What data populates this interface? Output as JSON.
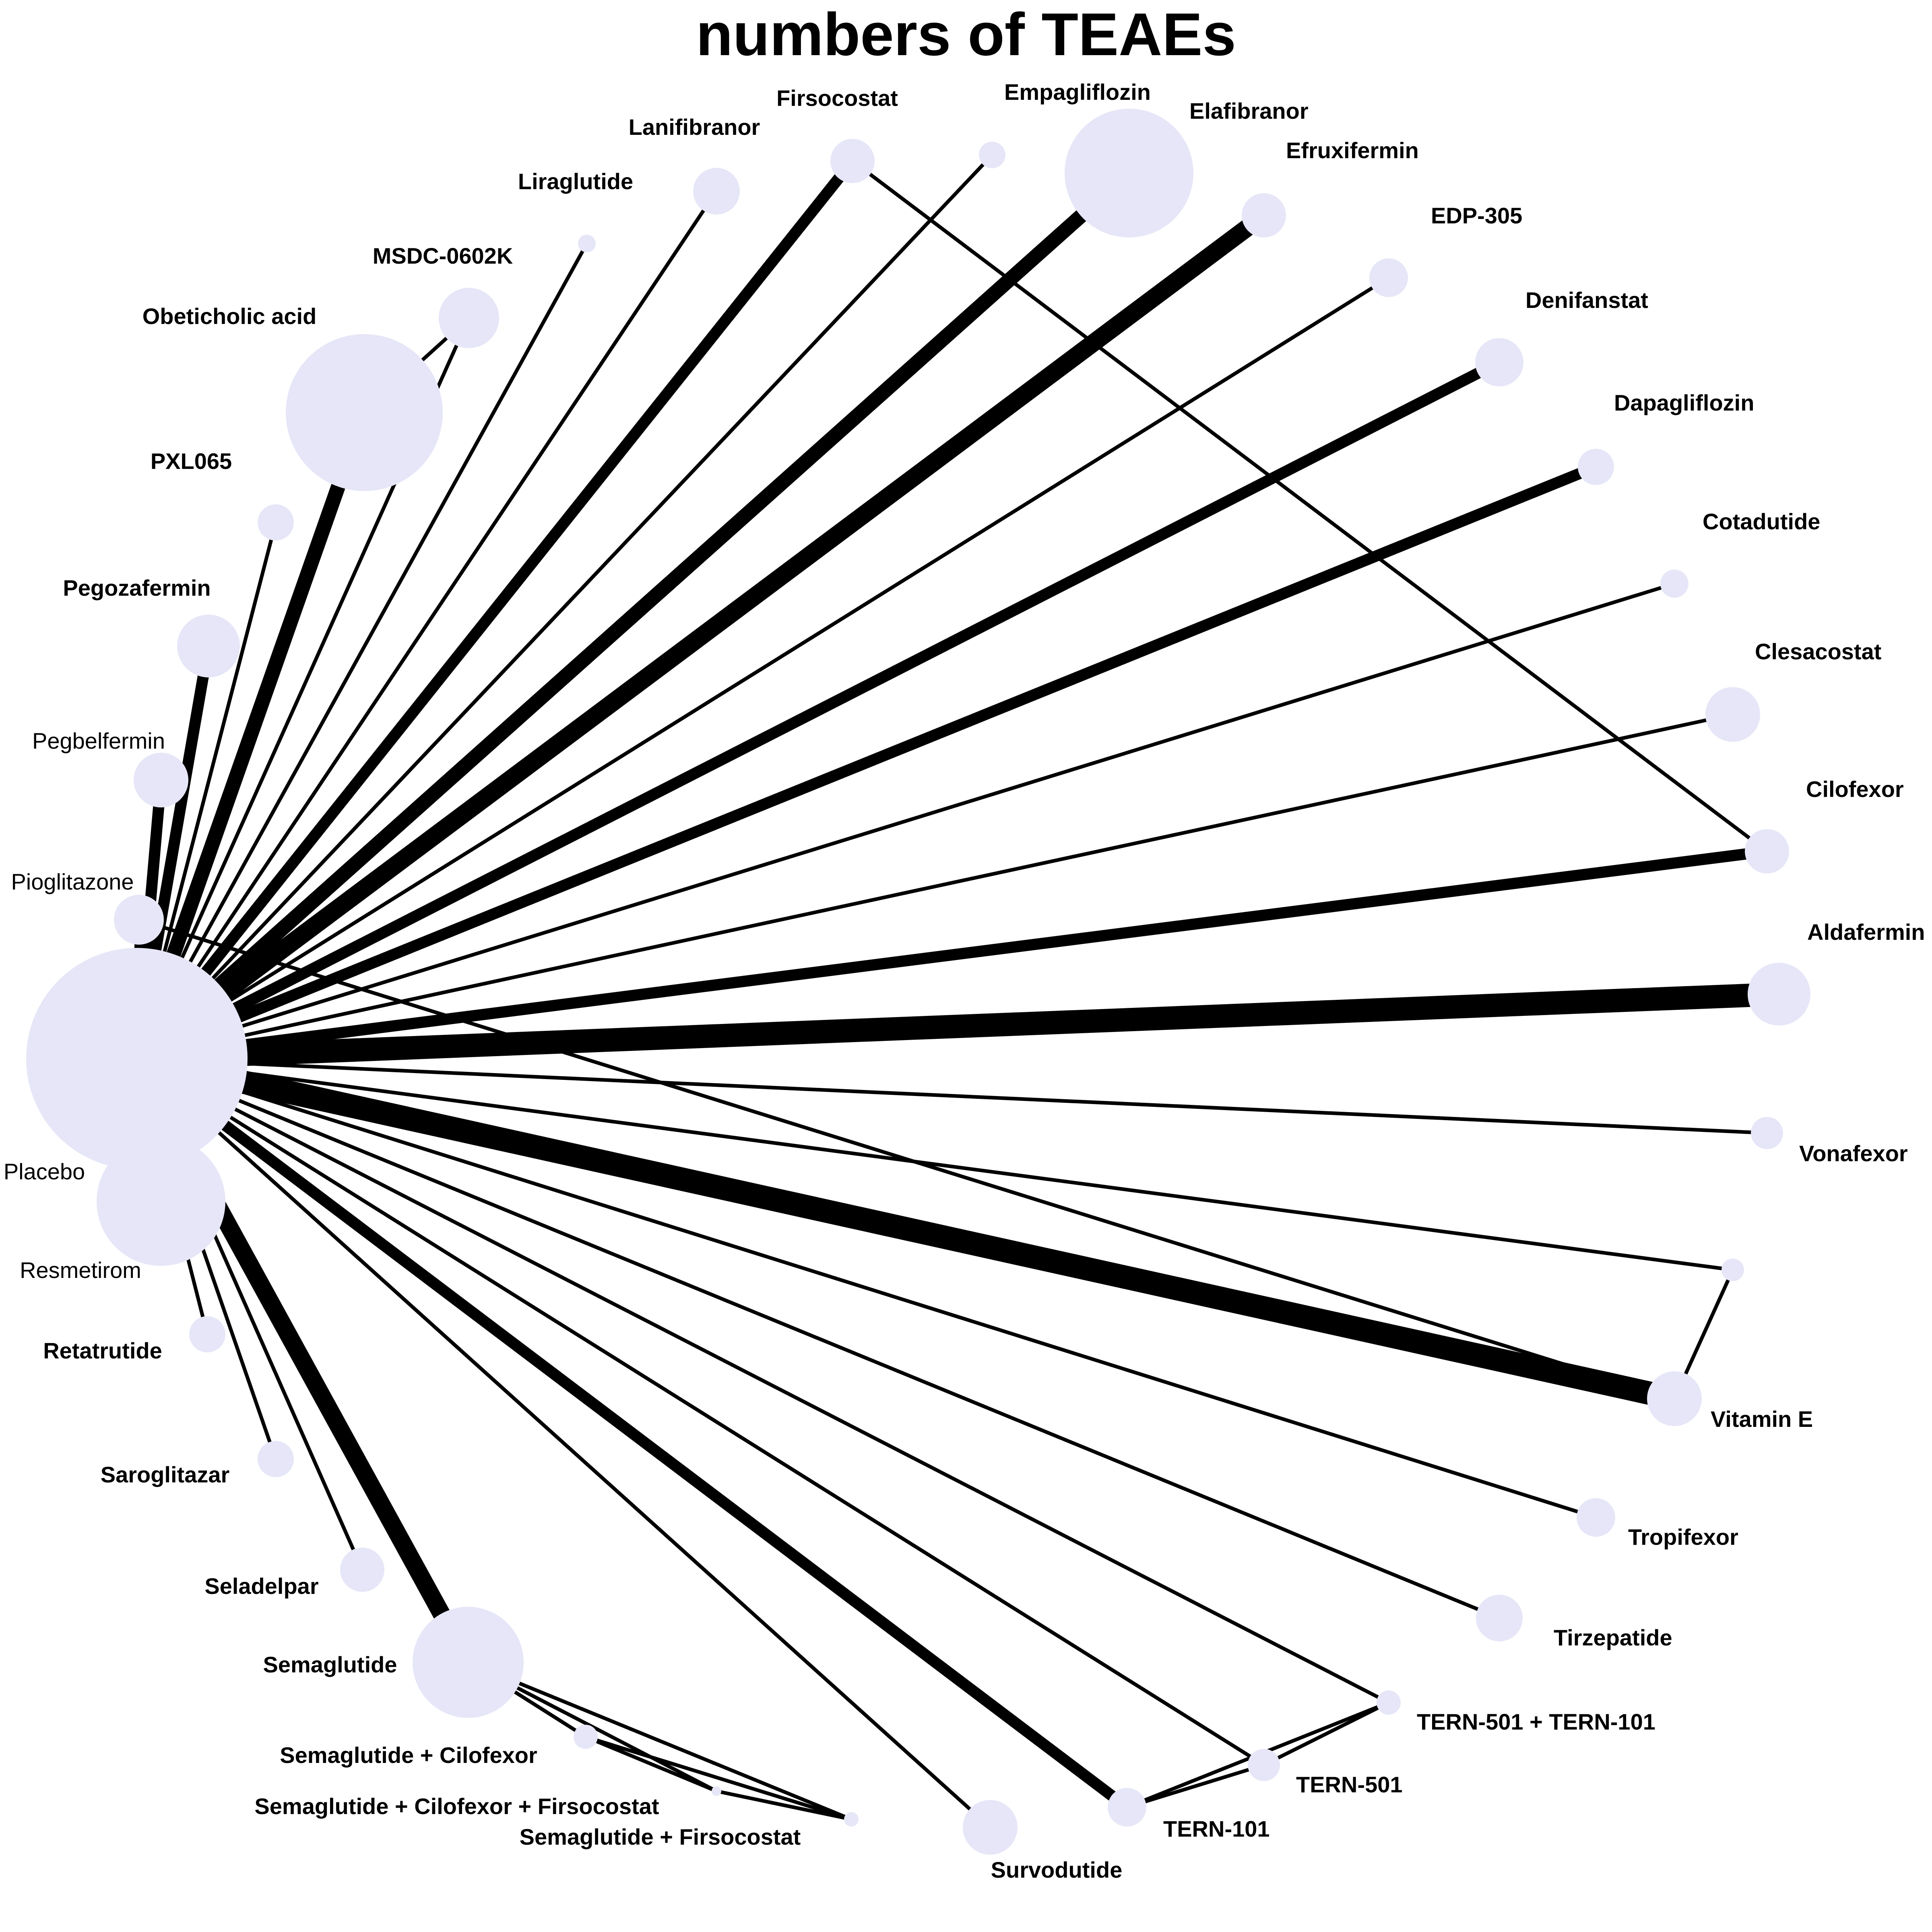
{
  "title": "numbers of TEAEs",
  "colors": {
    "node_fill": "#E6E6F8",
    "edge": "#000000",
    "background": "#FFFFFF"
  },
  "nodes": [
    {
      "id": "placebo",
      "label": "Placebo",
      "bold": false
    },
    {
      "id": "resmetirom",
      "label": "Resmetirom",
      "bold": false
    },
    {
      "id": "retatrutide",
      "label": "Retatrutide",
      "bold": true
    },
    {
      "id": "saroglitazar",
      "label": "Saroglitazar",
      "bold": true
    },
    {
      "id": "seladelpar",
      "label": "Seladelpar",
      "bold": true
    },
    {
      "id": "semaglutide",
      "label": "Semaglutide",
      "bold": true
    },
    {
      "id": "sema_cilo",
      "label": "Semaglutide + Cilofexor",
      "bold": true
    },
    {
      "id": "sema_cilo_firso",
      "label": "Semaglutide + Cilofexor + Firsocostat",
      "bold": true
    },
    {
      "id": "sema_firso",
      "label": "Semaglutide + Firsocostat",
      "bold": true
    },
    {
      "id": "survodutide",
      "label": "Survodutide",
      "bold": true
    },
    {
      "id": "tern101",
      "label": "TERN-101",
      "bold": true
    },
    {
      "id": "tern501",
      "label": "TERN-501",
      "bold": true
    },
    {
      "id": "tern501_101",
      "label": "TERN-501 + TERN-101",
      "bold": true
    },
    {
      "id": "tirzepatide",
      "label": "Tirzepatide",
      "bold": true
    },
    {
      "id": "tropifexor",
      "label": "Tropifexor",
      "bold": true
    },
    {
      "id": "vitamin_e",
      "label": "Vitamin E",
      "bold": true
    },
    {
      "id": "vk2809",
      "label": "",
      "bold": true
    },
    {
      "id": "vonafexor",
      "label": "Vonafexor",
      "bold": true
    },
    {
      "id": "aldafermin",
      "label": "Aldafermin",
      "bold": true
    },
    {
      "id": "cilofexor",
      "label": "Cilofexor",
      "bold": true
    },
    {
      "id": "clesacostat",
      "label": "Clesacostat",
      "bold": true
    },
    {
      "id": "cotadutide",
      "label": "Cotadutide",
      "bold": true
    },
    {
      "id": "dapagliflozin",
      "label": "Dapagliflozin",
      "bold": true
    },
    {
      "id": "denifanstat",
      "label": "Denifanstat",
      "bold": true
    },
    {
      "id": "edp305",
      "label": "EDP-305",
      "bold": true
    },
    {
      "id": "efruxifermin",
      "label": "Efruxifermin",
      "bold": true
    },
    {
      "id": "elafibranor",
      "label": "Elafibranor",
      "bold": true
    },
    {
      "id": "empagliflozin",
      "label": "Empagliflozin",
      "bold": true
    },
    {
      "id": "firsocostat",
      "label": "Firsocostat",
      "bold": true
    },
    {
      "id": "lanifibranor",
      "label": "Lanifibranor",
      "bold": true
    },
    {
      "id": "liraglutide",
      "label": "Liraglutide",
      "bold": true
    },
    {
      "id": "msdc",
      "label": "MSDC-0602K",
      "bold": true
    },
    {
      "id": "oca",
      "label": "Obeticholic acid",
      "bold": true
    },
    {
      "id": "pxl065",
      "label": "PXL065",
      "bold": true
    },
    {
      "id": "pegozafermin",
      "label": "Pegozafermin",
      "bold": true
    },
    {
      "id": "pegbelfermin",
      "label": "Pegbelfermin",
      "bold": false
    },
    {
      "id": "pioglitazone",
      "label": "Pioglitazone",
      "bold": false
    }
  ],
  "edges": [
    {
      "from": "placebo",
      "to": "aldafermin",
      "weight": 6
    },
    {
      "from": "placebo",
      "to": "vitamin_e",
      "weight": 6
    },
    {
      "from": "placebo",
      "to": "elafibranor",
      "weight": 4
    },
    {
      "from": "placebo",
      "to": "efruxifermin",
      "weight": 5
    },
    {
      "from": "placebo",
      "to": "semaglutide",
      "weight": 5
    },
    {
      "from": "placebo",
      "to": "oca",
      "weight": 4
    },
    {
      "from": "placebo",
      "to": "firsocostat",
      "weight": 3
    },
    {
      "from": "placebo",
      "to": "denifanstat",
      "weight": 3
    },
    {
      "from": "placebo",
      "to": "dapagliflozin",
      "weight": 3
    },
    {
      "from": "placebo",
      "to": "cilofexor",
      "weight": 3
    },
    {
      "from": "placebo",
      "to": "tern101",
      "weight": 3
    },
    {
      "from": "placebo",
      "to": "pegozafermin",
      "weight": 3
    },
    {
      "from": "placebo",
      "to": "pegbelfermin",
      "weight": 3
    },
    {
      "from": "placebo",
      "to": "pioglitazone",
      "weight": 2
    },
    {
      "from": "placebo",
      "to": "resmetirom",
      "weight": 2
    },
    {
      "from": "placebo",
      "to": "retatrutide",
      "weight": 1
    },
    {
      "from": "placebo",
      "to": "saroglitazar",
      "weight": 1
    },
    {
      "from": "placebo",
      "to": "seladelpar",
      "weight": 1
    },
    {
      "from": "placebo",
      "to": "survodutide",
      "weight": 1
    },
    {
      "from": "placebo",
      "to": "tern501",
      "weight": 1
    },
    {
      "from": "placebo",
      "to": "tern501_101",
      "weight": 1
    },
    {
      "from": "placebo",
      "to": "tirzepatide",
      "weight": 1
    },
    {
      "from": "placebo",
      "to": "tropifexor",
      "weight": 1
    },
    {
      "from": "placebo",
      "to": "vk2809",
      "weight": 1
    },
    {
      "from": "placebo",
      "to": "vonafexor",
      "weight": 1
    },
    {
      "from": "placebo",
      "to": "clesacostat",
      "weight": 1
    },
    {
      "from": "placebo",
      "to": "cotadutide",
      "weight": 1
    },
    {
      "from": "placebo",
      "to": "edp305",
      "weight": 1
    },
    {
      "from": "placebo",
      "to": "empagliflozin",
      "weight": 1
    },
    {
      "from": "placebo",
      "to": "lanifibranor",
      "weight": 1
    },
    {
      "from": "placebo",
      "to": "liraglutide",
      "weight": 1
    },
    {
      "from": "placebo",
      "to": "msdc",
      "weight": 1
    },
    {
      "from": "placebo",
      "to": "pxl065",
      "weight": 1
    },
    {
      "from": "pioglitazone",
      "to": "vitamin_e",
      "weight": 1
    },
    {
      "from": "vitamin_e",
      "to": "vk2809",
      "weight": 1
    },
    {
      "from": "oca",
      "to": "msdc",
      "weight": 1
    },
    {
      "from": "firsocostat",
      "to": "cilofexor",
      "weight": 1
    },
    {
      "from": "semaglutide",
      "to": "sema_cilo",
      "weight": 1
    },
    {
      "from": "semaglutide",
      "to": "sema_cilo_firso",
      "weight": 1
    },
    {
      "from": "semaglutide",
      "to": "sema_firso",
      "weight": 1
    },
    {
      "from": "sema_cilo",
      "to": "sema_cilo_firso",
      "weight": 1
    },
    {
      "from": "sema_cilo",
      "to": "sema_firso",
      "weight": 1
    },
    {
      "from": "sema_cilo_firso",
      "to": "sema_firso",
      "weight": 1
    },
    {
      "from": "tern101",
      "to": "tern501",
      "weight": 1
    },
    {
      "from": "tern101",
      "to": "tern501_101",
      "weight": 1
    },
    {
      "from": "tern501",
      "to": "tern501_101",
      "weight": 1
    }
  ]
}
